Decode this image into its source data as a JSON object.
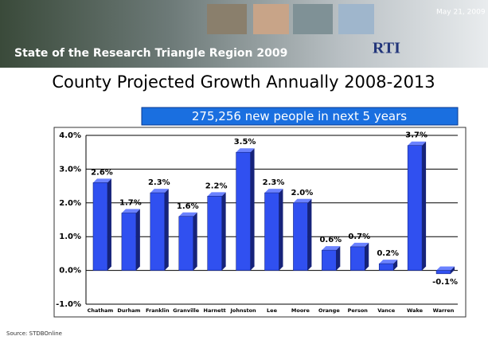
{
  "header": {
    "title": "State of the Research Triangle Region 2009",
    "date": "May 21, 2009",
    "logo": "RTI"
  },
  "source": "Source: STDBOnline",
  "chart_data": {
    "type": "bar",
    "title": "County Projected Growth Annually 2008-2013",
    "annotation": "275,256 new people in next 5 years",
    "categories": [
      "Chatham",
      "Durham",
      "Franklin",
      "Granville",
      "Harnett",
      "Johnston",
      "Lee",
      "Moore",
      "Orange",
      "Person",
      "Vance",
      "Wake",
      "Warren"
    ],
    "values": [
      2.6,
      1.7,
      2.3,
      1.6,
      2.2,
      3.5,
      2.3,
      2.0,
      0.6,
      0.7,
      0.2,
      3.7,
      -0.1
    ],
    "value_labels": [
      "2.6%",
      "1.7%",
      "2.3%",
      "1.6%",
      "2.2%",
      "3.5%",
      "2.3%",
      "2.0%",
      "0.6%",
      "0.7%",
      "0.2%",
      "3.7%",
      "-0.1%"
    ],
    "color": "#3050f0",
    "ylim": [
      -1,
      4
    ],
    "yticks": [
      {
        "value": -1,
        "label": "-1.0%"
      },
      {
        "value": 0,
        "label": "0.0%"
      },
      {
        "value": 1,
        "label": "1.0%"
      },
      {
        "value": 2,
        "label": "2.0%"
      },
      {
        "value": 3,
        "label": "3.0%"
      },
      {
        "value": 4,
        "label": "4.0%"
      }
    ],
    "grid": true
  }
}
